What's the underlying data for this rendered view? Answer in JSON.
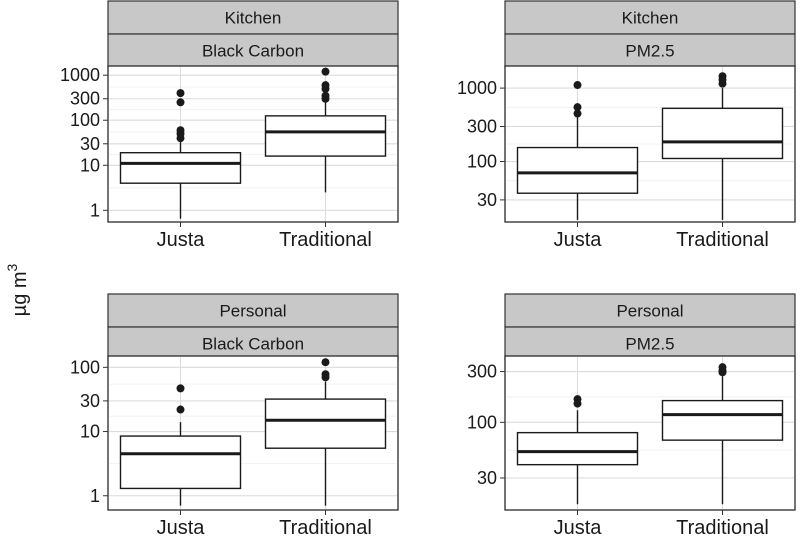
{
  "ylabel": {
    "text": "µg m",
    "superscript": "3"
  },
  "chart_data": [
    {
      "type": "boxplot",
      "strip_top": "Kitchen",
      "strip_bottom": "Black Carbon",
      "y_scale": "log10",
      "ylim": [
        0.55,
        1600
      ],
      "y_ticks": [
        1,
        10,
        30,
        100,
        300,
        1000
      ],
      "y_tick_labels": [
        "1",
        "10",
        "30",
        "100",
        "300",
        "1000"
      ],
      "categories": [
        "Justa",
        "Traditional"
      ],
      "boxes": [
        {
          "category": "Justa",
          "low": 0.65,
          "q1": 4,
          "median": 11,
          "q3": 19,
          "high": 35,
          "outliers": [
            40,
            50,
            60,
            250,
            400
          ]
        },
        {
          "category": "Traditional",
          "low": 2.5,
          "q1": 16,
          "median": 55,
          "q3": 125,
          "high": 260,
          "outliers": [
            300,
            350,
            500,
            600,
            1200
          ]
        }
      ]
    },
    {
      "type": "boxplot",
      "strip_top": "Kitchen",
      "strip_bottom": "PM2.5",
      "y_scale": "log10",
      "ylim": [
        15,
        2000
      ],
      "y_ticks": [
        30,
        100,
        300,
        1000
      ],
      "y_tick_labels": [
        "30",
        "100",
        "300",
        "1000"
      ],
      "categories": [
        "Justa",
        "Traditional"
      ],
      "boxes": [
        {
          "category": "Justa",
          "low": 16,
          "q1": 37,
          "median": 70,
          "q3": 155,
          "high": 400,
          "outliers": [
            450,
            550,
            1100
          ]
        },
        {
          "category": "Traditional",
          "low": 16,
          "q1": 110,
          "median": 185,
          "q3": 530,
          "high": 1000,
          "outliers": [
            1150,
            1300,
            1450
          ]
        }
      ]
    },
    {
      "type": "boxplot",
      "strip_top": "Personal",
      "strip_bottom": "Black Carbon",
      "y_scale": "log10",
      "ylim": [
        0.6,
        150
      ],
      "y_ticks": [
        1,
        10,
        30,
        100
      ],
      "y_tick_labels": [
        "1",
        "10",
        "30",
        "100"
      ],
      "categories": [
        "Justa",
        "Traditional"
      ],
      "boxes": [
        {
          "category": "Justa",
          "low": 0.7,
          "q1": 1.3,
          "median": 4.5,
          "q3": 8.5,
          "high": 14,
          "outliers": [
            22,
            47
          ]
        },
        {
          "category": "Traditional",
          "low": 0.7,
          "q1": 5.5,
          "median": 15,
          "q3": 32,
          "high": 60,
          "outliers": [
            70,
            78,
            120
          ]
        }
      ]
    },
    {
      "type": "boxplot",
      "strip_top": "Personal",
      "strip_bottom": "PM2.5",
      "y_scale": "log10",
      "ylim": [
        15,
        420
      ],
      "y_ticks": [
        30,
        100,
        300
      ],
      "y_tick_labels": [
        "30",
        "100",
        "300"
      ],
      "categories": [
        "Justa",
        "Traditional"
      ],
      "boxes": [
        {
          "category": "Justa",
          "low": 17,
          "q1": 40,
          "median": 53,
          "q3": 80,
          "high": 130,
          "outliers": [
            150,
            165
          ]
        },
        {
          "category": "Traditional",
          "low": 17,
          "q1": 68,
          "median": 118,
          "q3": 160,
          "high": 270,
          "outliers": [
            295,
            305,
            330
          ]
        }
      ]
    }
  ]
}
